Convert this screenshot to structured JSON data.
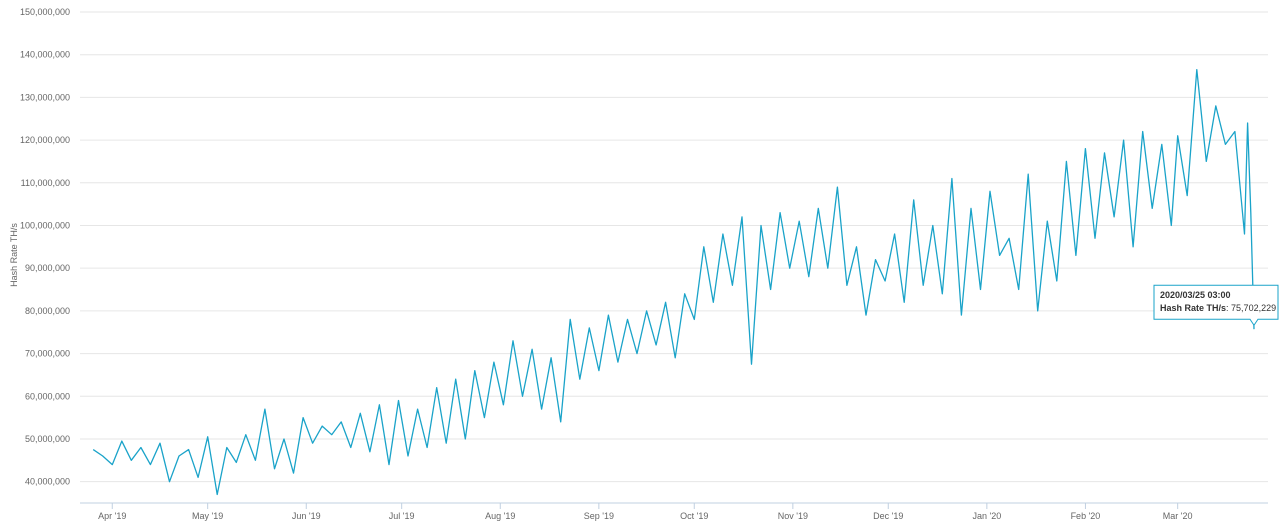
{
  "chart_data": {
    "type": "line",
    "title": "",
    "xlabel": "",
    "ylabel": "Hash Rate TH/s",
    "ylim": [
      35000000,
      150000000
    ],
    "y_ticks": [
      40000000,
      50000000,
      60000000,
      70000000,
      80000000,
      90000000,
      100000000,
      110000000,
      120000000,
      130000000,
      140000000,
      150000000
    ],
    "y_tick_labels": [
      "40,000,000",
      "50,000,000",
      "60,000,000",
      "70,000,000",
      "80,000,000",
      "90,000,000",
      "100,000,000",
      "110,000,000",
      "120,000,000",
      "130,000,000",
      "140,000,000",
      "150,000,000"
    ],
    "x_range": [
      "2019-03-25",
      "2020-03-25"
    ],
    "x_ticks": [
      "2019-04-01",
      "2019-05-01",
      "2019-06-01",
      "2019-07-01",
      "2019-08-01",
      "2019-09-01",
      "2019-10-01",
      "2019-11-01",
      "2019-12-01",
      "2020-01-01",
      "2020-02-01",
      "2020-03-01"
    ],
    "x_tick_labels": [
      "Apr '19",
      "May '19",
      "Jun '19",
      "Jul '19",
      "Aug '19",
      "Sep '19",
      "Oct '19",
      "Nov '19",
      "Dec '19",
      "Jan '20",
      "Feb '20",
      "Mar '20"
    ],
    "grid": true,
    "series": [
      {
        "color": "#1aa3c9",
        "points": [
          [
            "2019-03-26",
            47500000
          ],
          [
            "2019-03-29",
            46000000
          ],
          [
            "2019-04-01",
            44000000
          ],
          [
            "2019-04-04",
            49500000
          ],
          [
            "2019-04-07",
            45000000
          ],
          [
            "2019-04-10",
            48000000
          ],
          [
            "2019-04-13",
            44000000
          ],
          [
            "2019-04-16",
            49000000
          ],
          [
            "2019-04-19",
            40000000
          ],
          [
            "2019-04-22",
            46000000
          ],
          [
            "2019-04-25",
            47500000
          ],
          [
            "2019-04-28",
            41000000
          ],
          [
            "2019-05-01",
            50500000
          ],
          [
            "2019-05-04",
            37000000
          ],
          [
            "2019-05-07",
            48000000
          ],
          [
            "2019-05-10",
            44500000
          ],
          [
            "2019-05-13",
            51000000
          ],
          [
            "2019-05-16",
            45000000
          ],
          [
            "2019-05-19",
            57000000
          ],
          [
            "2019-05-22",
            43000000
          ],
          [
            "2019-05-25",
            50000000
          ],
          [
            "2019-05-28",
            42000000
          ],
          [
            "2019-05-31",
            55000000
          ],
          [
            "2019-06-03",
            49000000
          ],
          [
            "2019-06-06",
            53000000
          ],
          [
            "2019-06-09",
            51000000
          ],
          [
            "2019-06-12",
            54000000
          ],
          [
            "2019-06-15",
            48000000
          ],
          [
            "2019-06-18",
            56000000
          ],
          [
            "2019-06-21",
            47000000
          ],
          [
            "2019-06-24",
            58000000
          ],
          [
            "2019-06-27",
            44000000
          ],
          [
            "2019-06-30",
            59000000
          ],
          [
            "2019-07-03",
            46000000
          ],
          [
            "2019-07-06",
            57000000
          ],
          [
            "2019-07-09",
            48000000
          ],
          [
            "2019-07-12",
            62000000
          ],
          [
            "2019-07-15",
            49000000
          ],
          [
            "2019-07-18",
            64000000
          ],
          [
            "2019-07-21",
            50000000
          ],
          [
            "2019-07-24",
            66000000
          ],
          [
            "2019-07-27",
            55000000
          ],
          [
            "2019-07-30",
            68000000
          ],
          [
            "2019-08-02",
            58000000
          ],
          [
            "2019-08-05",
            73000000
          ],
          [
            "2019-08-08",
            60000000
          ],
          [
            "2019-08-11",
            71000000
          ],
          [
            "2019-08-14",
            57000000
          ],
          [
            "2019-08-17",
            69000000
          ],
          [
            "2019-08-20",
            54000000
          ],
          [
            "2019-08-23",
            78000000
          ],
          [
            "2019-08-26",
            64000000
          ],
          [
            "2019-08-29",
            76000000
          ],
          [
            "2019-09-01",
            66000000
          ],
          [
            "2019-09-04",
            79000000
          ],
          [
            "2019-09-07",
            68000000
          ],
          [
            "2019-09-10",
            78000000
          ],
          [
            "2019-09-13",
            70000000
          ],
          [
            "2019-09-16",
            80000000
          ],
          [
            "2019-09-19",
            72000000
          ],
          [
            "2019-09-22",
            82000000
          ],
          [
            "2019-09-25",
            69000000
          ],
          [
            "2019-09-28",
            84000000
          ],
          [
            "2019-10-01",
            78000000
          ],
          [
            "2019-10-04",
            95000000
          ],
          [
            "2019-10-07",
            82000000
          ],
          [
            "2019-10-10",
            98000000
          ],
          [
            "2019-10-13",
            86000000
          ],
          [
            "2019-10-16",
            102000000
          ],
          [
            "2019-10-19",
            67500000
          ],
          [
            "2019-10-22",
            100000000
          ],
          [
            "2019-10-25",
            85000000
          ],
          [
            "2019-10-28",
            103000000
          ],
          [
            "2019-10-31",
            90000000
          ],
          [
            "2019-11-03",
            101000000
          ],
          [
            "2019-11-06",
            88000000
          ],
          [
            "2019-11-09",
            104000000
          ],
          [
            "2019-11-12",
            90000000
          ],
          [
            "2019-11-15",
            109000000
          ],
          [
            "2019-11-18",
            86000000
          ],
          [
            "2019-11-21",
            95000000
          ],
          [
            "2019-11-24",
            79000000
          ],
          [
            "2019-11-27",
            92000000
          ],
          [
            "2019-11-30",
            87000000
          ],
          [
            "2019-12-03",
            98000000
          ],
          [
            "2019-12-06",
            82000000
          ],
          [
            "2019-12-09",
            106000000
          ],
          [
            "2019-12-12",
            86000000
          ],
          [
            "2019-12-15",
            100000000
          ],
          [
            "2019-12-18",
            84000000
          ],
          [
            "2019-12-21",
            111000000
          ],
          [
            "2019-12-24",
            79000000
          ],
          [
            "2019-12-27",
            104000000
          ],
          [
            "2019-12-30",
            85000000
          ],
          [
            "2020-01-02",
            108000000
          ],
          [
            "2020-01-05",
            93000000
          ],
          [
            "2020-01-08",
            97000000
          ],
          [
            "2020-01-11",
            85000000
          ],
          [
            "2020-01-14",
            112000000
          ],
          [
            "2020-01-17",
            80000000
          ],
          [
            "2020-01-20",
            101000000
          ],
          [
            "2020-01-23",
            87000000
          ],
          [
            "2020-01-26",
            115000000
          ],
          [
            "2020-01-29",
            93000000
          ],
          [
            "2020-02-01",
            118000000
          ],
          [
            "2020-02-04",
            97000000
          ],
          [
            "2020-02-07",
            117000000
          ],
          [
            "2020-02-10",
            102000000
          ],
          [
            "2020-02-13",
            120000000
          ],
          [
            "2020-02-16",
            95000000
          ],
          [
            "2020-02-19",
            122000000
          ],
          [
            "2020-02-22",
            104000000
          ],
          [
            "2020-02-25",
            119000000
          ],
          [
            "2020-02-28",
            100000000
          ],
          [
            "2020-03-01",
            121000000
          ],
          [
            "2020-03-04",
            107000000
          ],
          [
            "2020-03-07",
            136500000
          ],
          [
            "2020-03-10",
            115000000
          ],
          [
            "2020-03-13",
            128000000
          ],
          [
            "2020-03-16",
            119000000
          ],
          [
            "2020-03-19",
            122000000
          ],
          [
            "2020-03-22",
            98000000
          ],
          [
            "2020-03-23",
            124000000
          ],
          [
            "2020-03-24",
            103000000
          ],
          [
            "2020-03-25",
            75702229
          ]
        ]
      }
    ],
    "tooltip": {
      "date": "2020/03/25 03:00",
      "label": "Hash Rate TH/s",
      "value": "75,702,229"
    }
  }
}
